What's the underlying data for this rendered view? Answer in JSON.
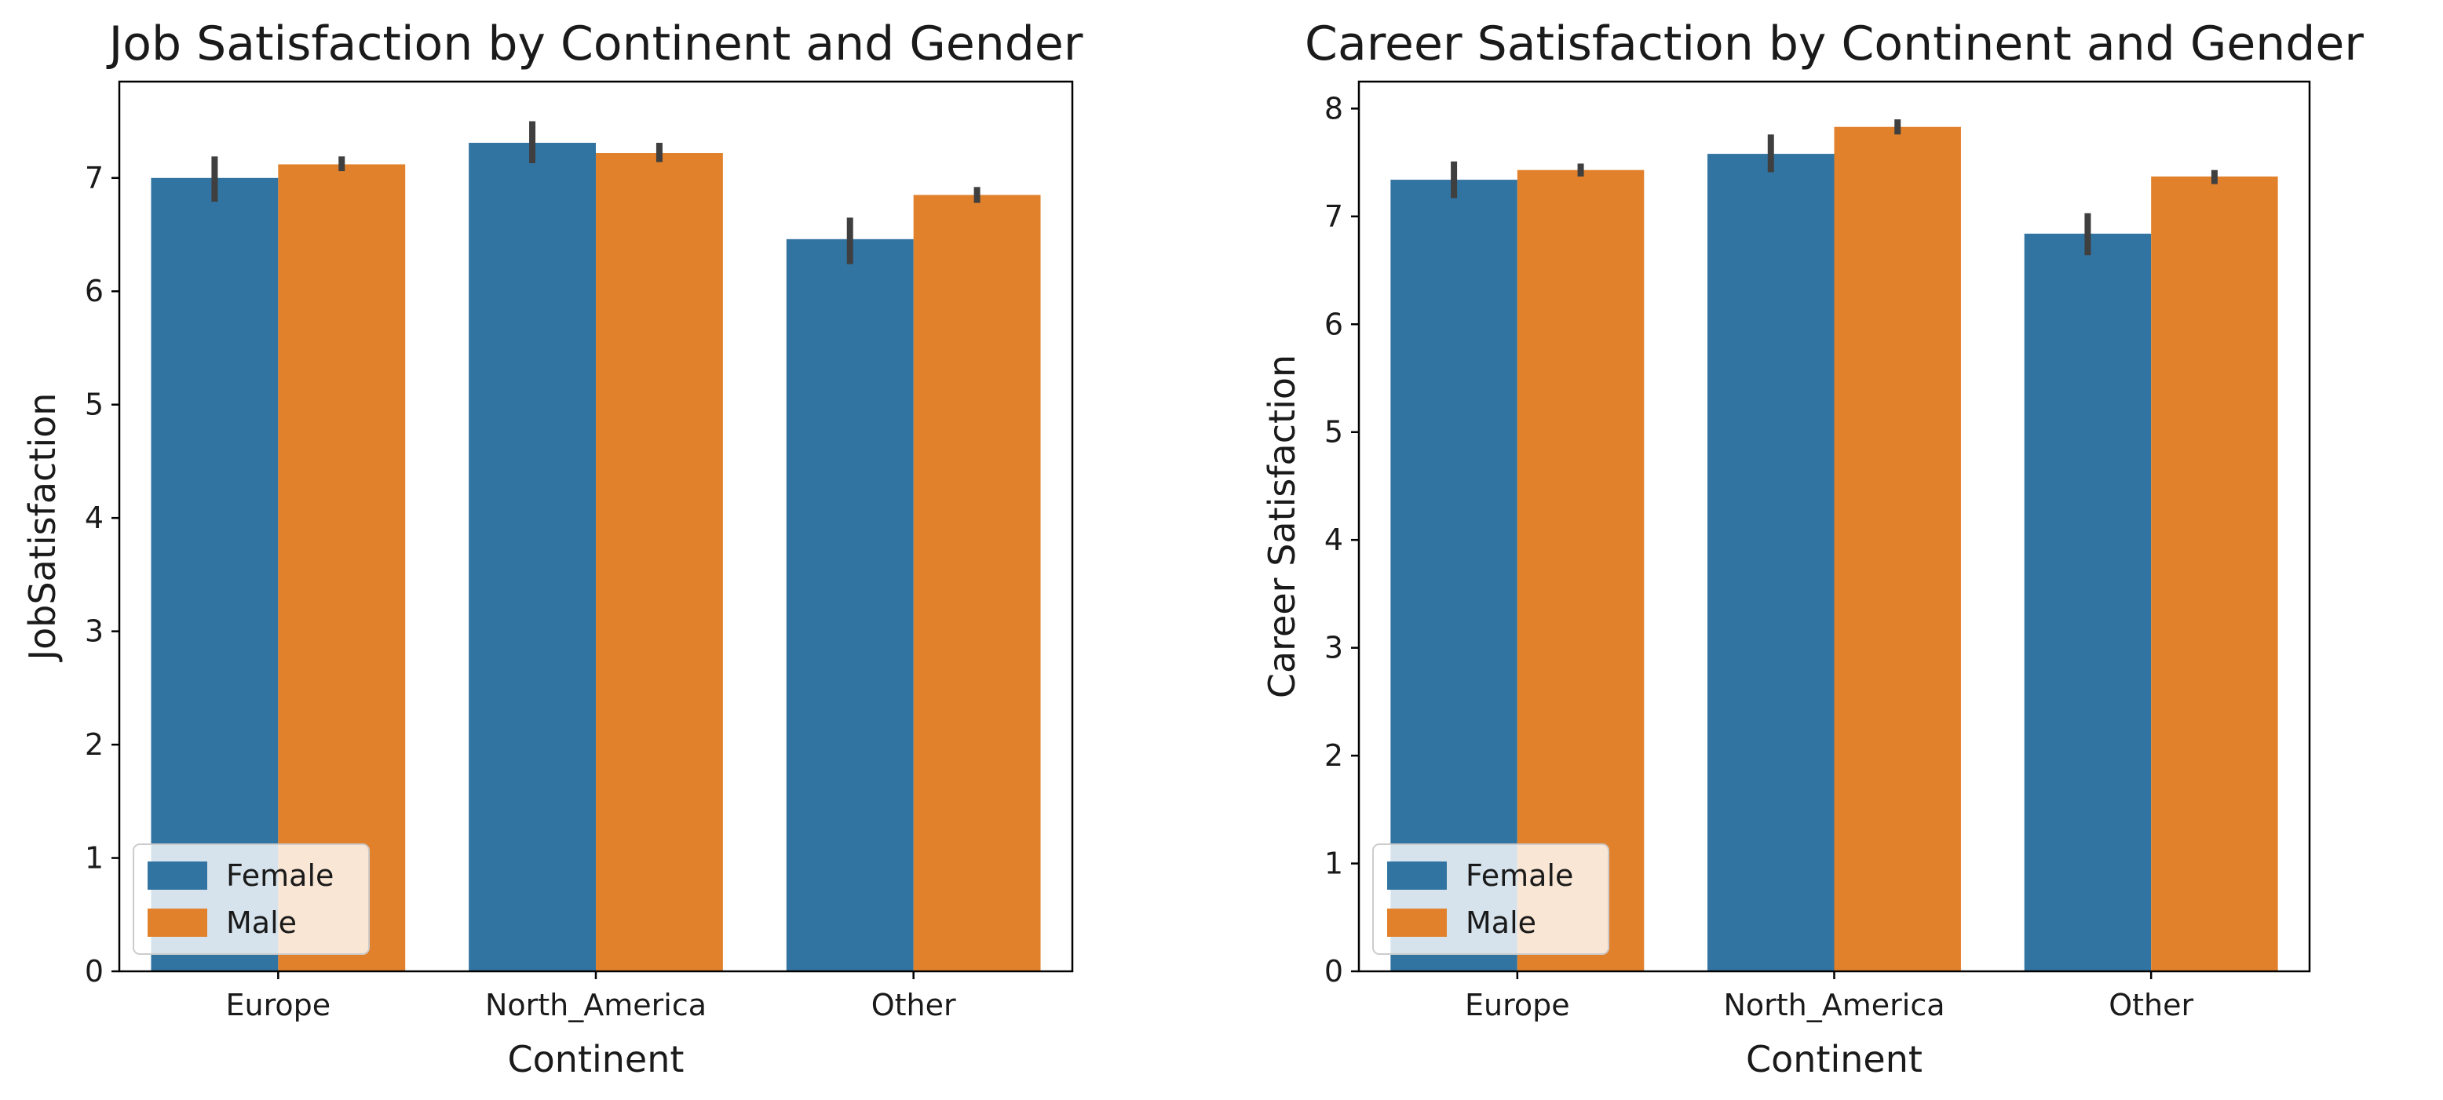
{
  "chart_data": [
    {
      "type": "bar",
      "title": "Job Satisfaction by Continent and Gender",
      "xlabel": "Continent",
      "ylabel": "JobSatisfaction",
      "categories": [
        "Europe",
        "North_America",
        "Other"
      ],
      "ylim": [
        0,
        7.85
      ],
      "yticks": [
        0,
        1,
        2,
        3,
        4,
        5,
        6,
        7
      ],
      "grid": false,
      "legend_position": "lower-left",
      "series": [
        {
          "name": "Female",
          "color": "#3274a1",
          "values": [
            7.0,
            7.31,
            6.46
          ],
          "err_low": [
            6.79,
            7.13,
            6.24
          ],
          "err_high": [
            7.19,
            7.5,
            6.65
          ]
        },
        {
          "name": "Male",
          "color": "#e1812c",
          "values": [
            7.12,
            7.22,
            6.85
          ],
          "err_low": [
            7.06,
            7.14,
            6.78
          ],
          "err_high": [
            7.19,
            7.31,
            6.92
          ]
        }
      ]
    },
    {
      "type": "bar",
      "title": "Career Satisfaction by Continent and Gender",
      "xlabel": "Continent",
      "ylabel": "Career Satisfaction",
      "categories": [
        "Europe",
        "North_America",
        "Other"
      ],
      "ylim": [
        0,
        8.25
      ],
      "yticks": [
        0,
        1,
        2,
        3,
        4,
        5,
        6,
        7,
        8
      ],
      "grid": false,
      "legend_position": "lower-left",
      "series": [
        {
          "name": "Female",
          "color": "#3274a1",
          "values": [
            7.34,
            7.58,
            6.84
          ],
          "err_low": [
            7.17,
            7.41,
            6.64
          ],
          "err_high": [
            7.51,
            7.76,
            7.03
          ]
        },
        {
          "name": "Male",
          "color": "#e1812c",
          "values": [
            7.43,
            7.83,
            7.37
          ],
          "err_low": [
            7.37,
            7.76,
            7.3
          ],
          "err_high": [
            7.49,
            7.9,
            7.43
          ]
        }
      ]
    }
  ]
}
